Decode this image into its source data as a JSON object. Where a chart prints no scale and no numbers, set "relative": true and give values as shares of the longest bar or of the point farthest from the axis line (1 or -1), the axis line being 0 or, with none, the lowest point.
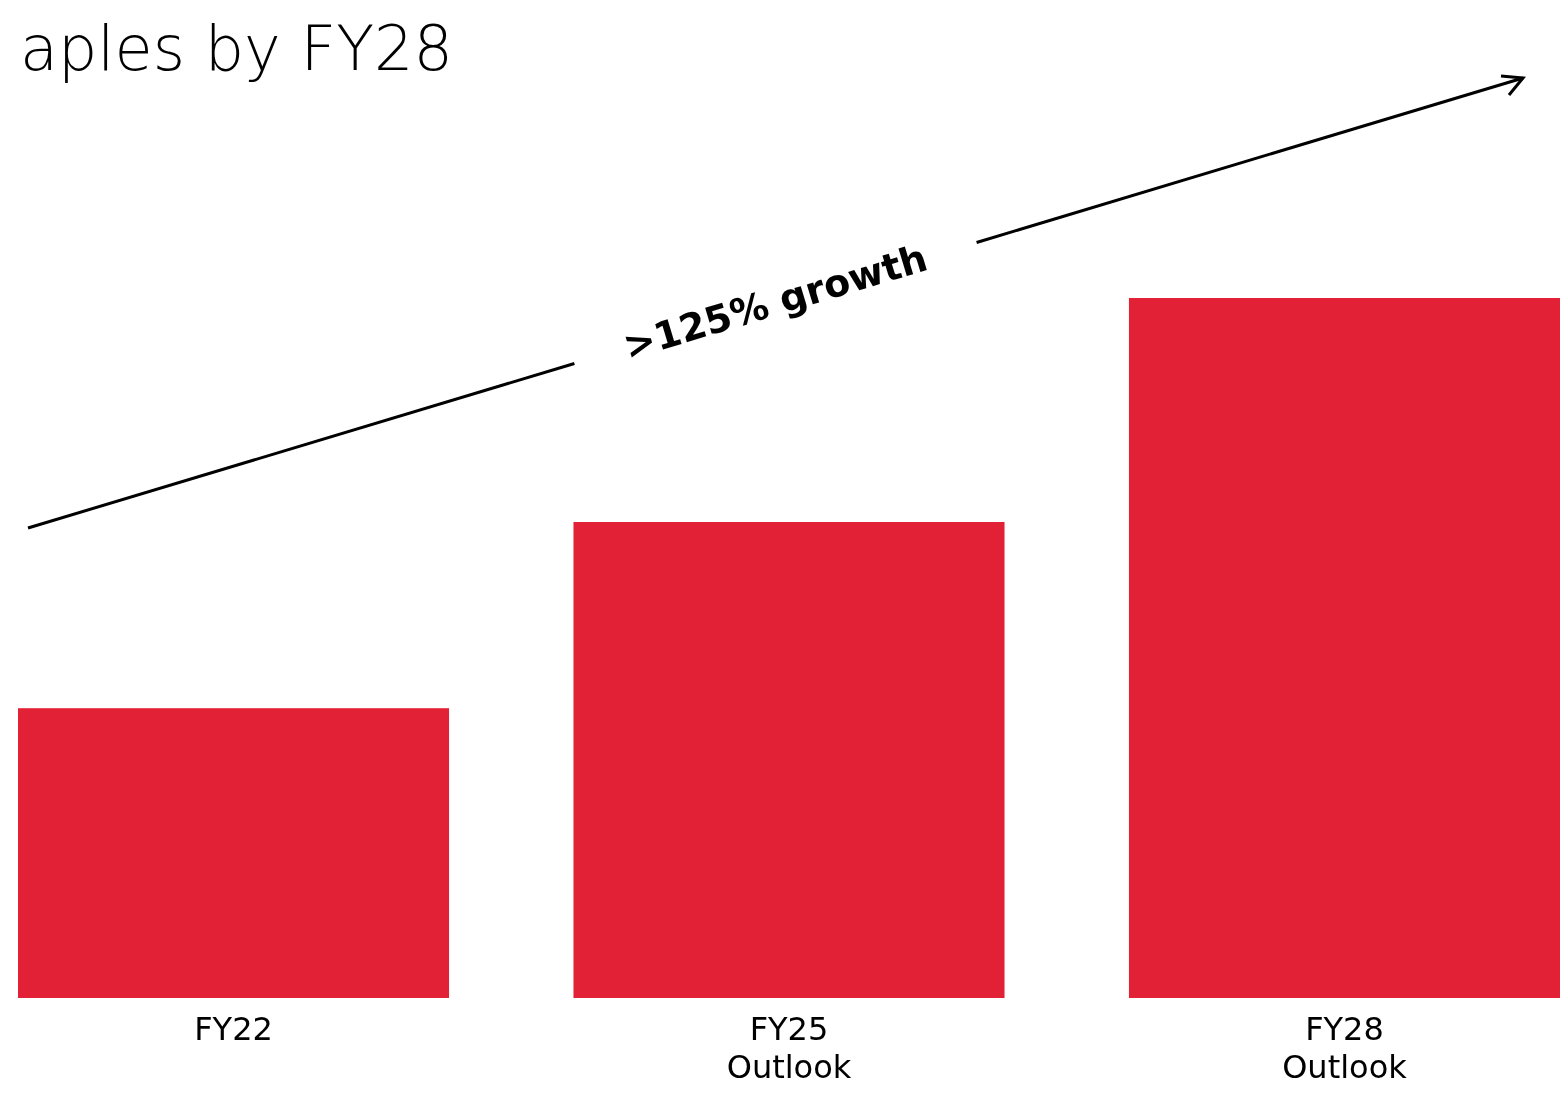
{
  "chart_data": {
    "type": "bar",
    "title": "aples by FY28",
    "relative": true,
    "categories": [
      "FY22",
      "FY25 Outlook",
      "FY28 Outlook"
    ],
    "values": [
      0.414,
      0.68,
      1
    ],
    "color": "#e32136",
    "annotations": [
      ">125% growth"
    ]
  }
}
